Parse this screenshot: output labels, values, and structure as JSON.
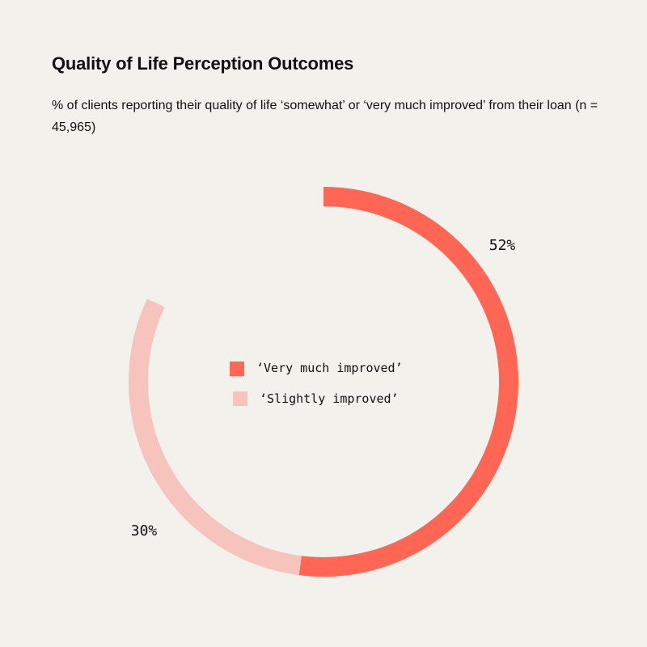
{
  "header": {
    "title": "Quality of Life Perception Outcomes",
    "subtitle": "% of clients reporting their quality of life ‘somewhat’ or ‘very much improved’ from their loan (n = 45,965)"
  },
  "colors": {
    "background": "#f2f1ec",
    "very_much": "#ff6654",
    "slightly": "#f6c4bc"
  },
  "chart_data": {
    "type": "pie",
    "variant": "donut-arc",
    "title": "Quality of Life Perception Outcomes",
    "series": [
      {
        "name": "‘Very much improved’",
        "value": 52,
        "label": "52%"
      },
      {
        "name": "‘Slightly improved’",
        "value": 30,
        "label": "30%"
      }
    ],
    "total": 100,
    "legend_placement": "center"
  }
}
